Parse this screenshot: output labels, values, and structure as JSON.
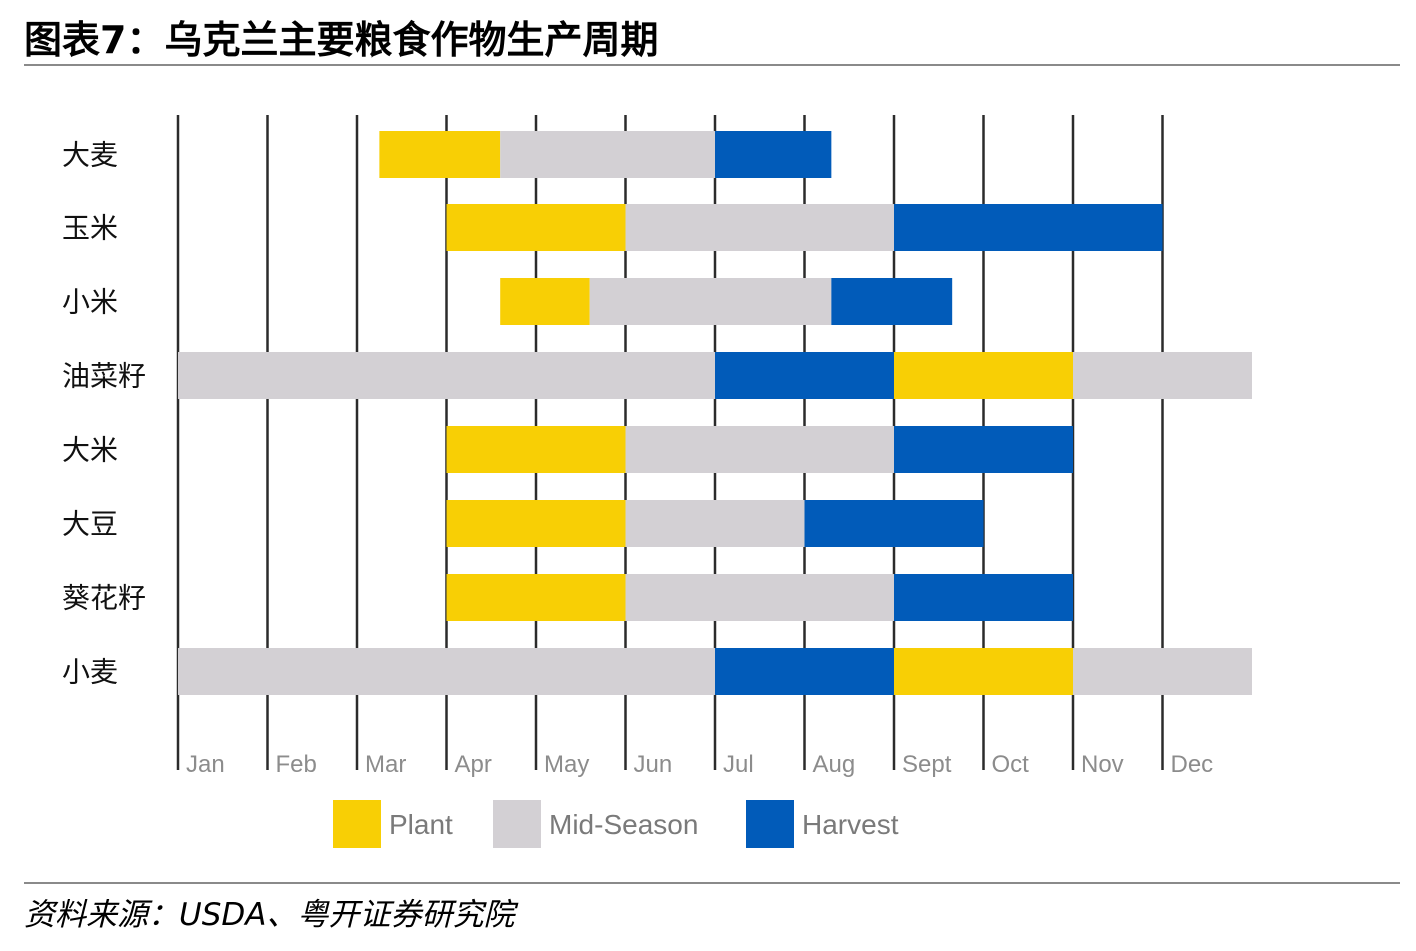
{
  "title": "图表7：乌克兰主要粮食作物生产周期",
  "source": "资料来源：USDA、粤开证券研究院",
  "chart_data": {
    "type": "gantt",
    "months": [
      "Jan",
      "Feb",
      "Mar",
      "Apr",
      "May",
      "Jun",
      "Jul",
      "Aug",
      "Sept",
      "Oct",
      "Nov",
      "Dec"
    ],
    "phases": [
      {
        "key": "plant",
        "label": "Plant",
        "color": "#F8CF05"
      },
      {
        "key": "mid",
        "label": "Mid-Season",
        "color": "#D3D0D4"
      },
      {
        "key": "harvest",
        "label": "Harvest",
        "color": "#015BB9"
      }
    ],
    "crops": [
      {
        "name": "大麦",
        "segments": [
          {
            "phase": "plant",
            "start": 2.25,
            "end": 3.6
          },
          {
            "phase": "mid",
            "start": 3.6,
            "end": 6.0
          },
          {
            "phase": "harvest",
            "start": 6.0,
            "end": 7.3
          }
        ]
      },
      {
        "name": "玉米",
        "segments": [
          {
            "phase": "plant",
            "start": 3.0,
            "end": 5.0
          },
          {
            "phase": "mid",
            "start": 5.0,
            "end": 8.0
          },
          {
            "phase": "harvest",
            "start": 8.0,
            "end": 11.0
          }
        ]
      },
      {
        "name": "小米",
        "segments": [
          {
            "phase": "plant",
            "start": 3.6,
            "end": 4.6
          },
          {
            "phase": "mid",
            "start": 4.6,
            "end": 7.3
          },
          {
            "phase": "harvest",
            "start": 7.3,
            "end": 8.65
          }
        ]
      },
      {
        "name": "油菜籽",
        "segments": [
          {
            "phase": "mid",
            "start": 0.0,
            "end": 6.0
          },
          {
            "phase": "harvest",
            "start": 6.0,
            "end": 8.0
          },
          {
            "phase": "plant",
            "start": 8.0,
            "end": 10.0
          },
          {
            "phase": "mid",
            "start": 10.0,
            "end": 12.0
          }
        ]
      },
      {
        "name": "大米",
        "segments": [
          {
            "phase": "plant",
            "start": 3.0,
            "end": 5.0
          },
          {
            "phase": "mid",
            "start": 5.0,
            "end": 8.0
          },
          {
            "phase": "harvest",
            "start": 8.0,
            "end": 10.0
          }
        ]
      },
      {
        "name": "大豆",
        "segments": [
          {
            "phase": "plant",
            "start": 3.0,
            "end": 5.0
          },
          {
            "phase": "mid",
            "start": 5.0,
            "end": 7.0
          },
          {
            "phase": "harvest",
            "start": 7.0,
            "end": 9.0
          }
        ]
      },
      {
        "name": "葵花籽",
        "segments": [
          {
            "phase": "plant",
            "start": 3.0,
            "end": 5.0
          },
          {
            "phase": "mid",
            "start": 5.0,
            "end": 8.0
          },
          {
            "phase": "harvest",
            "start": 8.0,
            "end": 10.0
          }
        ]
      },
      {
        "name": "小麦",
        "segments": [
          {
            "phase": "mid",
            "start": 0.0,
            "end": 6.0
          },
          {
            "phase": "harvest",
            "start": 6.0,
            "end": 8.0
          },
          {
            "phase": "plant",
            "start": 8.0,
            "end": 10.0
          },
          {
            "phase": "mid",
            "start": 10.0,
            "end": 12.0
          }
        ]
      }
    ],
    "grid": true,
    "legend": "bottom"
  }
}
